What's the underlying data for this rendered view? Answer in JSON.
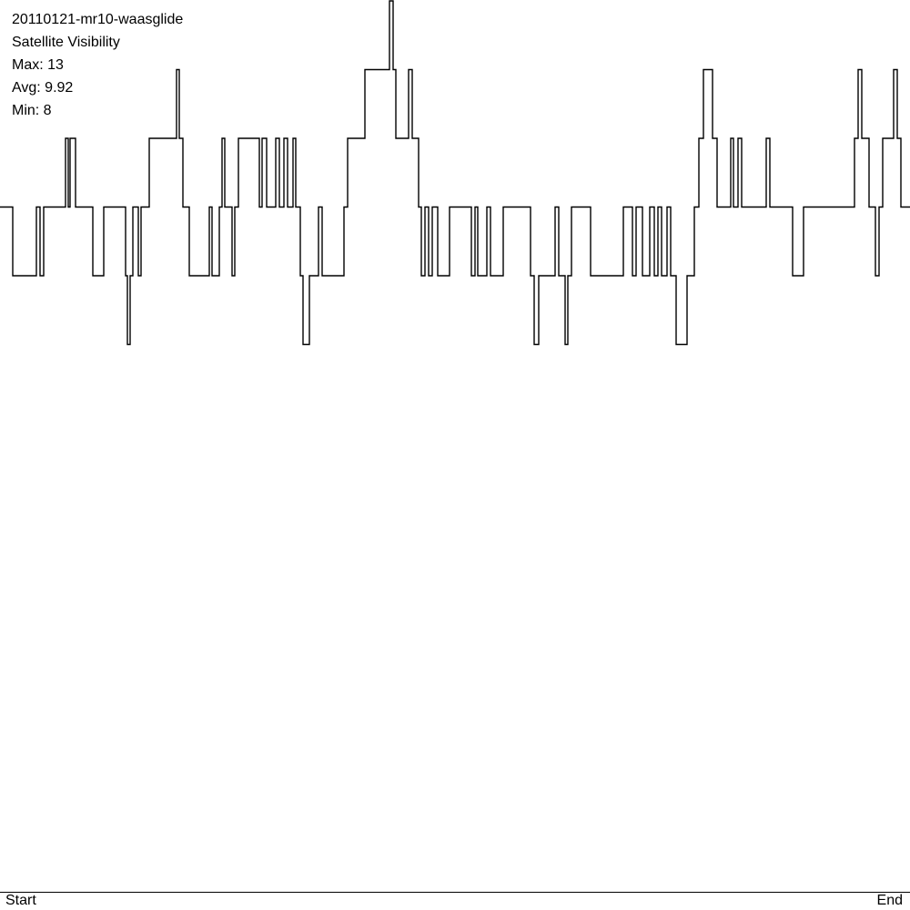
{
  "header": {
    "file_name": "20110121-mr10-waasglide",
    "title": "Satellite Visibility",
    "max_text": "Max: 13",
    "avg_text": "Avg: 9.92",
    "min_text": "Min: 8"
  },
  "axis": {
    "start_label": "Start",
    "end_label": "End"
  },
  "colors": {
    "line": "#000000",
    "background": "#ffffff"
  },
  "chart_data": {
    "type": "line",
    "title": "Satellite Visibility",
    "subtitle": "20110121-mr10-waasglide",
    "xlabel": "",
    "ylabel": "",
    "x_tick_labels": [
      "Start",
      "End"
    ],
    "ylim": [
      0,
      13
    ],
    "grid": false,
    "stats": {
      "max": 13,
      "avg": 9.92,
      "min": 8
    },
    "series": [
      {
        "interpolation": "step",
        "x": [
          0.0,
          1.4,
          4.0,
          4.4,
          4.8,
          7.2,
          7.5,
          7.7,
          8.3,
          10.2,
          11.4,
          13.8,
          14.0,
          14.3,
          14.6,
          15.2,
          15.5,
          16.4,
          19.4,
          19.7,
          20.1,
          20.8,
          23.0,
          23.3,
          24.1,
          24.4,
          24.7,
          25.5,
          25.8,
          26.2,
          28.5,
          28.8,
          29.3,
          30.3,
          30.7,
          31.2,
          31.6,
          32.2,
          32.5,
          33.0,
          33.3,
          34.0,
          35.0,
          35.4,
          37.8,
          38.2,
          40.1,
          42.8,
          43.2,
          43.5,
          44.9,
          45.3,
          46.0,
          46.3,
          46.7,
          47.1,
          47.5,
          48.1,
          49.4,
          51.8,
          52.2,
          52.5,
          53.5,
          53.9,
          55.3,
          58.3,
          58.7,
          59.2,
          61.0,
          61.4,
          62.1,
          62.4,
          62.8,
          64.9,
          68.5,
          69.5,
          69.9,
          70.6,
          71.4,
          71.9,
          72.3,
          72.7,
          73.3,
          73.7,
          74.3,
          75.5,
          76.3,
          76.8,
          77.3,
          78.3,
          78.8,
          80.3,
          80.6,
          81.1,
          81.5,
          84.2,
          84.6,
          87.1,
          88.3,
          93.9,
          94.3,
          94.7,
          95.5,
          96.2,
          96.6,
          97.0,
          98.2,
          98.6,
          99.0,
          100.0
        ],
        "y": [
          10,
          9,
          10,
          9,
          10,
          11,
          10,
          11,
          10,
          9,
          10,
          9,
          8,
          9,
          10,
          9,
          10,
          11,
          12,
          11,
          10,
          9,
          10,
          9,
          10,
          11,
          10,
          9,
          10,
          11,
          10,
          11,
          10,
          11,
          10,
          11,
          10,
          11,
          10,
          9,
          8,
          9,
          10,
          9,
          10,
          11,
          12,
          13,
          12,
          11,
          12,
          11,
          10,
          9,
          10,
          9,
          10,
          9,
          10,
          9,
          10,
          9,
          10,
          9,
          10,
          9,
          8,
          9,
          10,
          9,
          8,
          9,
          10,
          9,
          10,
          9,
          10,
          9,
          10,
          9,
          10,
          9,
          10,
          9,
          8,
          9,
          10,
          11,
          12,
          11,
          10,
          11,
          10,
          11,
          10,
          11,
          10,
          9,
          10,
          11,
          12,
          11,
          10,
          9,
          10,
          11,
          12,
          11,
          10,
          10
        ]
      }
    ]
  }
}
